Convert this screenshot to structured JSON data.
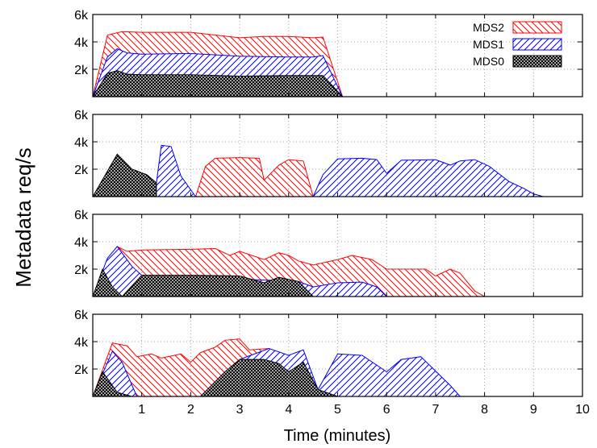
{
  "chart_data": {
    "type": "area",
    "xlabel": "Time (minutes)",
    "ylabel": "Metadata  req/s",
    "xlim": [
      0,
      10
    ],
    "ylim": [
      0,
      6000
    ],
    "x_ticks": [
      "1",
      "2",
      "3",
      "4",
      "5",
      "6",
      "7",
      "8",
      "9",
      "10"
    ],
    "y_ticks": [
      "2k",
      "4k",
      "6k"
    ],
    "grid": true,
    "stacked": true,
    "legend": {
      "placement": "top-right of first panel",
      "entries": [
        {
          "name": "MDS2",
          "color": "#ff0000",
          "pattern": "hatch-backslash"
        },
        {
          "name": "MDS1",
          "color": "#0000ff",
          "pattern": "hatch-slash"
        },
        {
          "name": "MDS0",
          "color": "#000000",
          "pattern": "crosshatch"
        }
      ]
    },
    "panels": [
      {
        "series": [
          {
            "name": "MDS0",
            "points": [
              [
                0,
                0
              ],
              [
                0.3,
                1700
              ],
              [
                0.5,
                1900
              ],
              [
                0.7,
                1650
              ],
              [
                1,
                1600
              ],
              [
                2,
                1600
              ],
              [
                3,
                1500
              ],
              [
                4,
                1550
              ],
              [
                4.7,
                1550
              ],
              [
                5.1,
                0
              ],
              [
                6.3,
                0
              ]
            ]
          },
          {
            "name": "MDS1",
            "points": [
              [
                0,
                0
              ],
              [
                0.3,
                2900
              ],
              [
                0.5,
                3500
              ],
              [
                0.7,
                3200
              ],
              [
                1,
                3100
              ],
              [
                2,
                3150
              ],
              [
                3,
                2950
              ],
              [
                4,
                2900
              ],
              [
                4.5,
                2900
              ],
              [
                4.7,
                3000
              ],
              [
                5.1,
                0
              ],
              [
                6.3,
                0
              ]
            ]
          },
          {
            "name": "MDS2",
            "points": [
              [
                0,
                0
              ],
              [
                0.3,
                4500
              ],
              [
                0.6,
                4750
              ],
              [
                1,
                4700
              ],
              [
                2,
                4700
              ],
              [
                2.5,
                4500
              ],
              [
                3,
                4300
              ],
              [
                3.5,
                4400
              ],
              [
                4,
                4400
              ],
              [
                4.5,
                4300
              ],
              [
                4.7,
                4350
              ],
              [
                5.1,
                0
              ],
              [
                6.3,
                0
              ]
            ]
          }
        ]
      },
      {
        "series": [
          {
            "name": "MDS0",
            "points": [
              [
                0,
                0
              ],
              [
                0.5,
                3100
              ],
              [
                0.8,
                2000
              ],
              [
                1.1,
                1600
              ],
              [
                1.3,
                1000
              ],
              [
                1.3,
                0
              ]
            ]
          },
          {
            "name": "MDS1",
            "points": [
              [
                0.8,
                2000
              ],
              [
                1.1,
                1600
              ],
              [
                1.3,
                1000
              ],
              [
                1.4,
                3750
              ],
              [
                1.6,
                3650
              ],
              [
                1.8,
                1500
              ],
              [
                2.1,
                0
              ],
              [
                4.5,
                0
              ],
              [
                4.7,
                1600
              ],
              [
                5,
                2750
              ],
              [
                5.5,
                2800
              ],
              [
                5.8,
                2700
              ],
              [
                6,
                1700
              ],
              [
                6.3,
                2650
              ],
              [
                7,
                2700
              ],
              [
                7.3,
                2300
              ],
              [
                7.5,
                2600
              ],
              [
                7.8,
                2700
              ],
              [
                8.1,
                2200
              ],
              [
                8.5,
                1100
              ],
              [
                8.8,
                600
              ],
              [
                9,
                200
              ],
              [
                9.2,
                0
              ],
              [
                10,
                0
              ]
            ]
          },
          {
            "name": "MDS2",
            "points": [
              [
                2.1,
                0
              ],
              [
                2.3,
                2200
              ],
              [
                2.5,
                2800
              ],
              [
                3,
                2850
              ],
              [
                3.4,
                2800
              ],
              [
                3.5,
                1200
              ],
              [
                3.8,
                2300
              ],
              [
                4,
                2700
              ],
              [
                4.3,
                2600
              ],
              [
                4.5,
                0
              ]
            ]
          }
        ]
      },
      {
        "series": [
          {
            "name": "MDS0",
            "points": [
              [
                0,
                0
              ],
              [
                0.2,
                2000
              ],
              [
                0.4,
                700
              ],
              [
                0.6,
                0
              ],
              [
                1,
                1550
              ],
              [
                2,
                1550
              ],
              [
                3,
                1500
              ],
              [
                3.5,
                1000
              ],
              [
                3.8,
                1400
              ],
              [
                4.2,
                1100
              ],
              [
                4.5,
                0
              ]
            ]
          },
          {
            "name": "MDS1",
            "points": [
              [
                0,
                0
              ],
              [
                0.3,
                2800
              ],
              [
                0.5,
                3650
              ],
              [
                0.8,
                2200
              ],
              [
                1,
                1550
              ],
              [
                4.2,
                1100
              ],
              [
                4.5,
                700
              ],
              [
                5,
                1000
              ],
              [
                5.5,
                1050
              ],
              [
                5.8,
                700
              ],
              [
                6,
                0
              ]
            ]
          },
          {
            "name": "MDS2",
            "points": [
              [
                0.5,
                3650
              ],
              [
                0.7,
                3300
              ],
              [
                1,
                3400
              ],
              [
                2,
                3450
              ],
              [
                2.5,
                3500
              ],
              [
                2.8,
                3000
              ],
              [
                3,
                3300
              ],
              [
                3.5,
                2700
              ],
              [
                3.8,
                3200
              ],
              [
                4,
                3000
              ],
              [
                4.2,
                2600
              ],
              [
                4.5,
                2300
              ],
              [
                5,
                2700
              ],
              [
                5.3,
                3000
              ],
              [
                5.7,
                2700
              ],
              [
                6,
                2000
              ],
              [
                6.8,
                2000
              ],
              [
                7,
                1500
              ],
              [
                7.3,
                2000
              ],
              [
                7.5,
                1700
              ],
              [
                7.8,
                400
              ],
              [
                8,
                0
              ],
              [
                10,
                0
              ]
            ]
          }
        ]
      },
      {
        "series": [
          {
            "name": "MDS0",
            "points": [
              [
                0,
                0
              ],
              [
                0.2,
                1800
              ],
              [
                0.5,
                300
              ],
              [
                0.8,
                0
              ],
              [
                2.2,
                0
              ],
              [
                2.7,
                1800
              ],
              [
                3,
                2700
              ],
              [
                3.5,
                2700
              ],
              [
                3.8,
                2400
              ],
              [
                4,
                1800
              ],
              [
                4.3,
                2500
              ],
              [
                4.6,
                500
              ],
              [
                5,
                0
              ]
            ]
          },
          {
            "name": "MDS1",
            "points": [
              [
                0,
                0
              ],
              [
                0.4,
                3300
              ],
              [
                0.6,
                2500
              ],
              [
                0.9,
                0
              ],
              [
                2.2,
                0
              ],
              [
                3,
                2700
              ],
              [
                3.6,
                3500
              ],
              [
                4,
                3000
              ],
              [
                4.3,
                3400
              ],
              [
                4.6,
                500
              ],
              [
                5,
                3100
              ],
              [
                5.5,
                3000
              ],
              [
                6,
                1800
              ],
              [
                6.3,
                2700
              ],
              [
                6.7,
                2900
              ],
              [
                7.3,
                800
              ],
              [
                7.5,
                0
              ],
              [
                10,
                0
              ]
            ]
          },
          {
            "name": "MDS2",
            "points": [
              [
                0,
                0
              ],
              [
                0.4,
                3900
              ],
              [
                0.7,
                3700
              ],
              [
                0.9,
                2900
              ],
              [
                1.2,
                3100
              ],
              [
                1.4,
                2800
              ],
              [
                1.8,
                3100
              ],
              [
                2,
                2500
              ],
              [
                2.2,
                3200
              ],
              [
                2.5,
                3600
              ],
              [
                2.7,
                4100
              ],
              [
                3,
                4200
              ],
              [
                3.2,
                3400
              ],
              [
                3.6,
                3500
              ]
            ]
          }
        ]
      }
    ]
  }
}
